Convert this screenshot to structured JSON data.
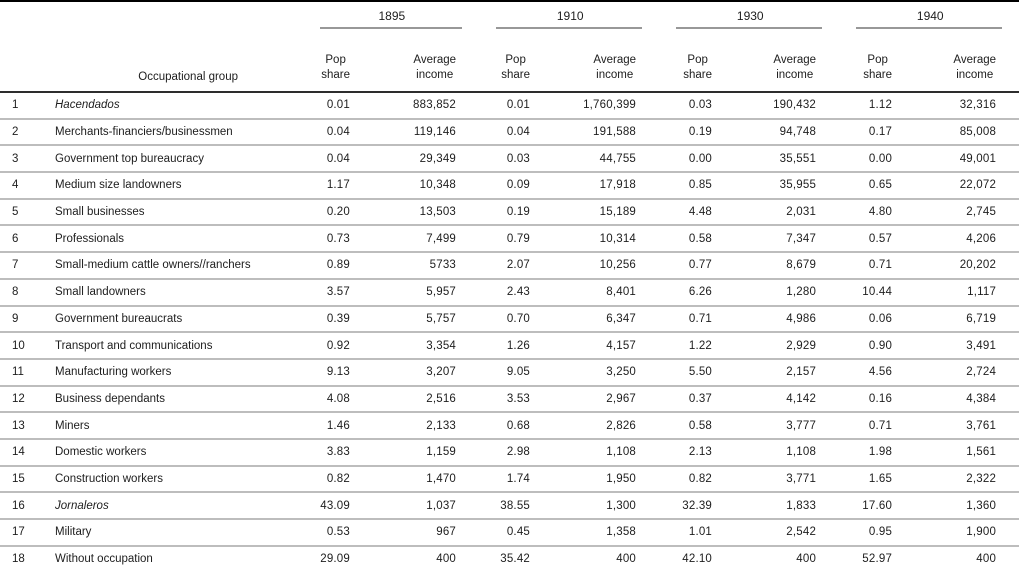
{
  "colors": {
    "text": "#1d1d1d",
    "heavy_rule": "#000000",
    "header_rule": "#2d2d2d",
    "year_underline": "#989898",
    "row_separator": "#bdbdbd",
    "background": "#ffffff"
  },
  "table": {
    "occupational_group_header": "Occupational group",
    "year_groups": [
      {
        "year": "1895"
      },
      {
        "year": "1910"
      },
      {
        "year": "1930"
      },
      {
        "year": "1940"
      }
    ],
    "sub_header": {
      "pop_line1": "Pop",
      "pop_line2": "share",
      "income_line1": "Average",
      "income_line2": "income"
    },
    "rows": [
      {
        "num": "1",
        "group": "Hacendados",
        "italic": true,
        "values": [
          "0.01",
          "883,852",
          "0.01",
          "1,760,399",
          "0.03",
          "190,432",
          "1.12",
          "32,316"
        ]
      },
      {
        "num": "2",
        "group": "Merchants-financiers/businessmen",
        "italic": false,
        "values": [
          "0.04",
          "119,146",
          "0.04",
          "191,588",
          "0.19",
          "94,748",
          "0.17",
          "85,008"
        ]
      },
      {
        "num": "3",
        "group": "Government top bureaucracy",
        "italic": false,
        "values": [
          "0.04",
          "29,349",
          "0.03",
          "44,755",
          "0.00",
          "35,551",
          "0.00",
          "49,001"
        ]
      },
      {
        "num": "4",
        "group": "Medium size landowners",
        "italic": false,
        "values": [
          "1.17",
          "10,348",
          "0.09",
          "17,918",
          "0.85",
          "35,955",
          "0.65",
          "22,072"
        ]
      },
      {
        "num": "5",
        "group": "Small businesses",
        "italic": false,
        "values": [
          "0.20",
          "13,503",
          "0.19",
          "15,189",
          "4.48",
          "2,031",
          "4.80",
          "2,745"
        ]
      },
      {
        "num": "6",
        "group": "Professionals",
        "italic": false,
        "values": [
          "0.73",
          "7,499",
          "0.79",
          "10,314",
          "0.58",
          "7,347",
          "0.57",
          "4,206"
        ]
      },
      {
        "num": "7",
        "group": "Small-medium cattle owners//ranchers",
        "italic": false,
        "values": [
          "0.89",
          "5733",
          "2.07",
          "10,256",
          "0.77",
          "8,679",
          "0.71",
          "20,202"
        ]
      },
      {
        "num": "8",
        "group": "Small landowners",
        "italic": false,
        "values": [
          "3.57",
          "5,957",
          "2.43",
          "8,401",
          "6.26",
          "1,280",
          "10.44",
          "1,117"
        ]
      },
      {
        "num": "9",
        "group": "Government bureaucrats",
        "italic": false,
        "values": [
          "0.39",
          "5,757",
          "0.70",
          "6,347",
          "0.71",
          "4,986",
          "0.06",
          "6,719"
        ]
      },
      {
        "num": "10",
        "group": "Transport and communications",
        "italic": false,
        "values": [
          "0.92",
          "3,354",
          "1.26",
          "4,157",
          "1.22",
          "2,929",
          "0.90",
          "3,491"
        ]
      },
      {
        "num": "11",
        "group": "Manufacturing workers",
        "italic": false,
        "values": [
          "9.13",
          "3,207",
          "9.05",
          "3,250",
          "5.50",
          "2,157",
          "4.56",
          "2,724"
        ]
      },
      {
        "num": "12",
        "group": "Business dependants",
        "italic": false,
        "values": [
          "4.08",
          "2,516",
          "3.53",
          "2,967",
          "0.37",
          "4,142",
          "0.16",
          "4,384"
        ]
      },
      {
        "num": "13",
        "group": "Miners",
        "italic": false,
        "values": [
          "1.46",
          "2,133",
          "0.68",
          "2,826",
          "0.58",
          "3,777",
          "0.71",
          "3,761"
        ]
      },
      {
        "num": "14",
        "group": "Domestic workers",
        "italic": false,
        "values": [
          "3.83",
          "1,159",
          "2.98",
          "1,108",
          "2.13",
          "1,108",
          "1.98",
          "1,561"
        ]
      },
      {
        "num": "15",
        "group": "Construction workers",
        "italic": false,
        "values": [
          "0.82",
          "1,470",
          "1.74",
          "1,950",
          "0.82",
          "3,771",
          "1.65",
          "2,322"
        ]
      },
      {
        "num": "16",
        "group": "Jornaleros",
        "italic": true,
        "values": [
          "43.09",
          "1,037",
          "38.55",
          "1,300",
          "32.39",
          "1,833",
          "17.60",
          "1,360"
        ]
      },
      {
        "num": "17",
        "group": "Military",
        "italic": false,
        "values": [
          "0.53",
          "967",
          "0.45",
          "1,358",
          "1.01",
          "2,542",
          "0.95",
          "1,900"
        ]
      },
      {
        "num": "18",
        "group": "Without occupation",
        "italic": false,
        "values": [
          "29.09",
          "400",
          "35.42",
          "400",
          "42.10",
          "400",
          "52.97",
          "400"
        ]
      }
    ]
  }
}
